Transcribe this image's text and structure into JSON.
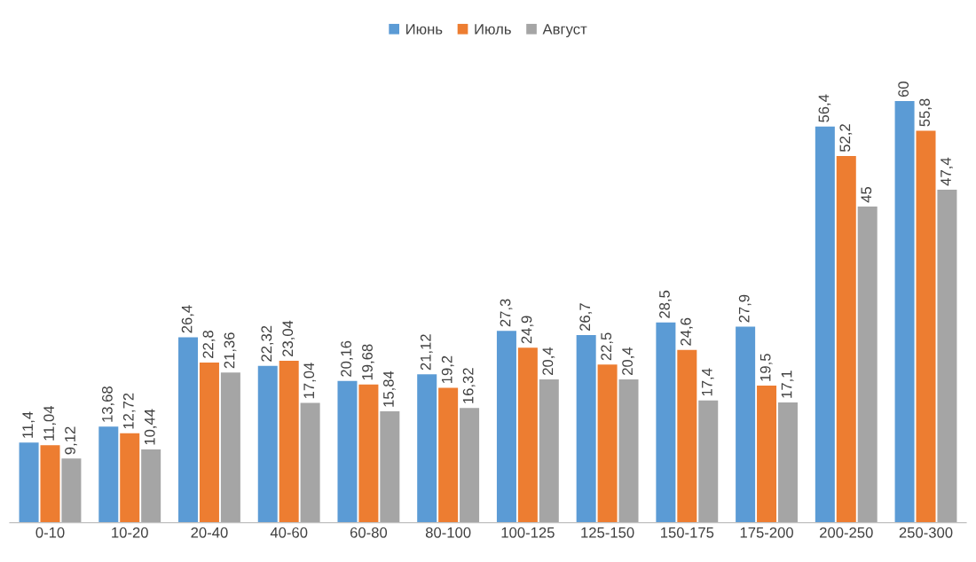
{
  "chart_data": {
    "type": "bar",
    "categories": [
      "0-10",
      "10-20",
      "20-40",
      "40-60",
      "60-80",
      "80-100",
      "100-125",
      "125-150",
      "150-175",
      "175-200",
      "200-250",
      "250-300"
    ],
    "series": [
      {
        "name": "Июнь",
        "color": "#5b9bd5",
        "values": [
          11.4,
          13.68,
          26.4,
          22.32,
          20.16,
          21.12,
          27.3,
          26.7,
          28.5,
          27.9,
          56.4,
          60
        ],
        "value_labels": [
          "11,4",
          "13,68",
          "26,4",
          "22,32",
          "20,16",
          "21,12",
          "27,3",
          "26,7",
          "28,5",
          "27,9",
          "56,4",
          "60"
        ]
      },
      {
        "name": "Июль",
        "color": "#ed7d31",
        "values": [
          11.04,
          12.72,
          22.8,
          23.04,
          19.68,
          19.2,
          24.9,
          22.5,
          24.6,
          19.5,
          52.2,
          55.8
        ],
        "value_labels": [
          "11,04",
          "12,72",
          "22,8",
          "23,04",
          "19,68",
          "19,2",
          "24,9",
          "22,5",
          "24,6",
          "19,5",
          "52,2",
          "55,8"
        ]
      },
      {
        "name": "Август",
        "color": "#a5a5a5",
        "values": [
          9.12,
          10.44,
          21.36,
          17.04,
          15.84,
          16.32,
          20.4,
          20.4,
          17.4,
          17.1,
          45,
          47.4
        ],
        "value_labels": [
          "9,12",
          "10,44",
          "21,36",
          "17,04",
          "15,84",
          "16,32",
          "20,4",
          "20,4",
          "17,4",
          "17,1",
          "45",
          "47,4"
        ]
      }
    ],
    "legend": "top",
    "grid": false
  }
}
